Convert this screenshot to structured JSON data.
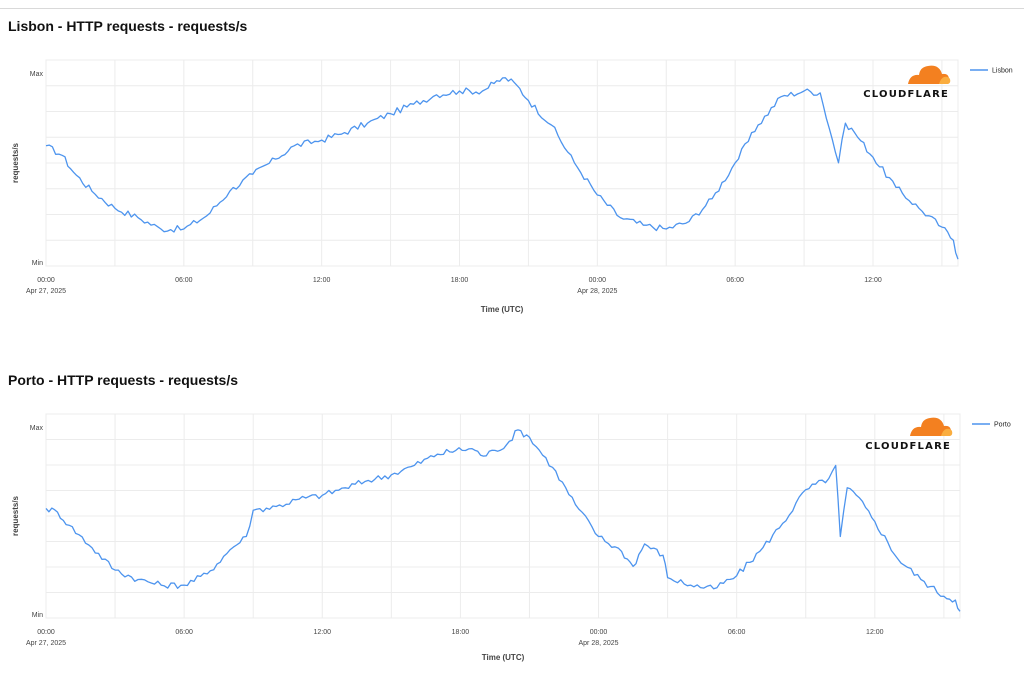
{
  "colors": {
    "series": "#4d94ee",
    "grid": "#ececec",
    "cloud_orange": "#f38020",
    "cloud_light": "#faad3f"
  },
  "logo": {
    "text": "CLOUDFLARE",
    "icon": "cloud-logo-icon"
  },
  "chart_data": [
    {
      "type": "line",
      "title": "Lisbon - HTTP requests - requests/s",
      "xlabel": "Time (UTC)",
      "ylabel": "requests/s",
      "y_tick_labels": [
        "Max",
        "Min"
      ],
      "ylim": [
        0,
        1
      ],
      "xlim": [
        0,
        39.7
      ],
      "x_ticks": [
        {
          "hours": 0,
          "label": "00:00",
          "sub": "Apr 27, 2025"
        },
        {
          "hours": 6,
          "label": "06:00",
          "sub": ""
        },
        {
          "hours": 12,
          "label": "12:00",
          "sub": ""
        },
        {
          "hours": 18,
          "label": "18:00",
          "sub": ""
        },
        {
          "hours": 24,
          "label": "00:00",
          "sub": "Apr 28, 2025"
        },
        {
          "hours": 30,
          "label": "06:00",
          "sub": ""
        },
        {
          "hours": 36,
          "label": "12:00",
          "sub": ""
        }
      ],
      "legend": {
        "position": "top-right",
        "entries": [
          "Lisbon"
        ]
      },
      "series": [
        {
          "name": "Lisbon",
          "x": [
            0,
            0.7,
            1.2,
            2,
            3,
            4,
            5,
            6,
            7,
            8,
            9,
            10,
            10.8,
            12,
            13,
            14,
            15,
            16,
            17,
            18,
            19,
            19.5,
            20,
            20.5,
            21,
            22,
            23,
            24,
            25,
            26,
            27,
            28,
            29,
            30,
            31,
            32,
            33,
            33.7,
            34.5,
            34.8,
            35.2,
            36,
            37,
            38,
            39,
            39.5,
            39.7
          ],
          "y": [
            0.62,
            0.57,
            0.48,
            0.38,
            0.29,
            0.24,
            0.18,
            0.18,
            0.25,
            0.38,
            0.47,
            0.55,
            0.62,
            0.65,
            0.69,
            0.74,
            0.79,
            0.84,
            0.89,
            0.91,
            0.91,
            0.95,
            0.98,
            0.94,
            0.86,
            0.73,
            0.53,
            0.36,
            0.24,
            0.2,
            0.18,
            0.22,
            0.34,
            0.53,
            0.73,
            0.88,
            0.91,
            0.9,
            0.53,
            0.74,
            0.69,
            0.56,
            0.4,
            0.29,
            0.19,
            0.12,
            0.02
          ]
        }
      ]
    },
    {
      "type": "line",
      "title": "Porto - HTTP requests - requests/s",
      "xlabel": "Time (UTC)",
      "ylabel": "requests/s",
      "y_tick_labels": [
        "Max",
        "Min"
      ],
      "ylim": [
        0,
        1
      ],
      "xlim": [
        0,
        39.7
      ],
      "x_ticks": [
        {
          "hours": 0,
          "label": "00:00",
          "sub": "Apr 27, 2025"
        },
        {
          "hours": 6,
          "label": "06:00",
          "sub": ""
        },
        {
          "hours": 12,
          "label": "12:00",
          "sub": ""
        },
        {
          "hours": 18,
          "label": "18:00",
          "sub": ""
        },
        {
          "hours": 24,
          "label": "00:00",
          "sub": "Apr 28, 2025"
        },
        {
          "hours": 30,
          "label": "06:00",
          "sub": ""
        },
        {
          "hours": 36,
          "label": "12:00",
          "sub": ""
        }
      ],
      "legend": {
        "position": "top-right",
        "entries": [
          "Porto"
        ]
      },
      "series": [
        {
          "name": "Porto",
          "x": [
            0,
            0.5,
            1,
            2,
            3,
            4,
            5,
            6,
            7,
            8,
            8.7,
            9,
            10,
            11,
            12,
            13,
            14,
            15,
            16,
            17,
            17.8,
            18.5,
            19,
            19.5,
            20,
            20.5,
            21,
            22,
            23,
            24,
            25,
            25.5,
            26,
            26.8,
            27,
            28,
            29,
            30,
            31,
            32,
            33,
            34,
            34.3,
            34.5,
            34.8,
            35.2,
            36,
            37,
            38,
            39,
            39.5,
            39.7
          ],
          "y": [
            0.57,
            0.55,
            0.48,
            0.36,
            0.24,
            0.19,
            0.16,
            0.16,
            0.22,
            0.35,
            0.42,
            0.56,
            0.58,
            0.62,
            0.64,
            0.68,
            0.72,
            0.75,
            0.8,
            0.86,
            0.88,
            0.89,
            0.85,
            0.88,
            0.91,
            0.99,
            0.95,
            0.79,
            0.59,
            0.42,
            0.34,
            0.26,
            0.38,
            0.32,
            0.2,
            0.16,
            0.14,
            0.21,
            0.34,
            0.49,
            0.67,
            0.73,
            0.8,
            0.42,
            0.68,
            0.64,
            0.5,
            0.3,
            0.19,
            0.1,
            0.08,
            0.02
          ]
        }
      ]
    }
  ]
}
